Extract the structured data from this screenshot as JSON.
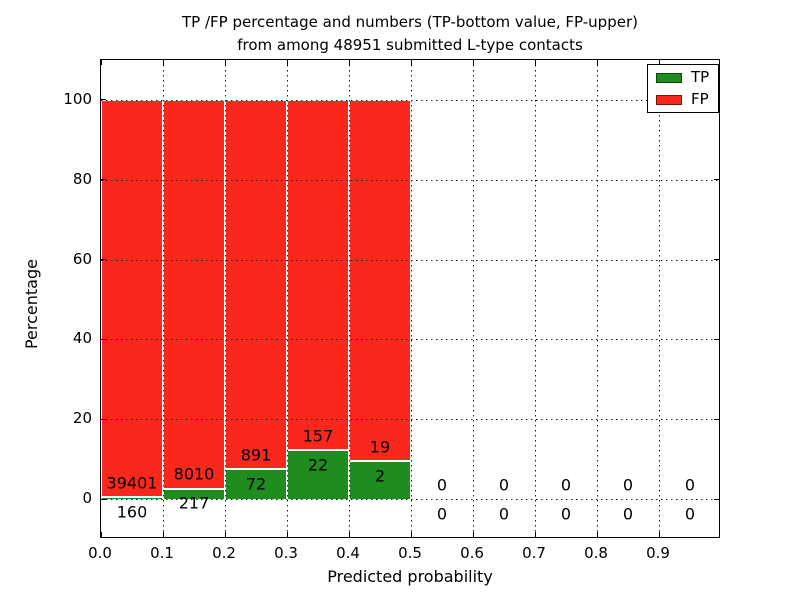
{
  "chart_data": {
    "type": "bar",
    "stacked": true,
    "title": "TP /FP percentage and numbers (TP-bottom value, FP-upper)",
    "subtitle": "from among 48951 submitted L-type contacts",
    "total_submitted": 48951,
    "xlabel": "Predicted probability",
    "ylabel": "Percentage",
    "xlim": [
      0.0,
      1.0
    ],
    "ylim": [
      -10,
      110
    ],
    "grid": "dotted",
    "x_tick_values": [
      0.0,
      0.1,
      0.2,
      0.3,
      0.4,
      0.5,
      0.6,
      0.7,
      0.8,
      0.9
    ],
    "x_tick_labels": [
      "0.0",
      "0.1",
      "0.2",
      "0.3",
      "0.4",
      "0.5",
      "0.6",
      "0.7",
      "0.8",
      "0.9"
    ],
    "y_tick_values": [
      0,
      20,
      40,
      60,
      80,
      100
    ],
    "y_tick_labels": [
      "0",
      "20",
      "40",
      "60",
      "80",
      "100"
    ],
    "legend": {
      "position": "upper-right",
      "entries": [
        {
          "label": "TP",
          "color": "#1e8c1e"
        },
        {
          "label": "FP",
          "color": "#f8281c"
        }
      ]
    },
    "bin_width": 0.1,
    "bins": [
      {
        "x_start": 0.0,
        "x_end": 0.1,
        "tp_count": 160,
        "fp_count": 39401,
        "tp_pct": 0.4,
        "fp_pct": 99.6
      },
      {
        "x_start": 0.1,
        "x_end": 0.2,
        "tp_count": 217,
        "fp_count": 8010,
        "tp_pct": 2.64,
        "fp_pct": 97.36
      },
      {
        "x_start": 0.2,
        "x_end": 0.3,
        "tp_count": 72,
        "fp_count": 891,
        "tp_pct": 7.48,
        "fp_pct": 92.52
      },
      {
        "x_start": 0.3,
        "x_end": 0.4,
        "tp_count": 22,
        "fp_count": 157,
        "tp_pct": 12.29,
        "fp_pct": 87.71
      },
      {
        "x_start": 0.4,
        "x_end": 0.5,
        "tp_count": 2,
        "fp_count": 19,
        "tp_pct": 9.52,
        "fp_pct": 90.48
      },
      {
        "x_start": 0.5,
        "x_end": 0.6,
        "tp_count": 0,
        "fp_count": 0,
        "tp_pct": 0,
        "fp_pct": 0
      },
      {
        "x_start": 0.6,
        "x_end": 0.7,
        "tp_count": 0,
        "fp_count": 0,
        "tp_pct": 0,
        "fp_pct": 0
      },
      {
        "x_start": 0.7,
        "x_end": 0.8,
        "tp_count": 0,
        "fp_count": 0,
        "tp_pct": 0,
        "fp_pct": 0
      },
      {
        "x_start": 0.8,
        "x_end": 0.9,
        "tp_count": 0,
        "fp_count": 0,
        "tp_pct": 0,
        "fp_pct": 0
      },
      {
        "x_start": 0.9,
        "x_end": 1.0,
        "tp_count": 0,
        "fp_count": 0,
        "tp_pct": 0,
        "fp_pct": 0
      }
    ]
  },
  "colors": {
    "tp_green": "#1e8c1e",
    "fp_red": "#f8281c",
    "bar_edge": "#ffffff",
    "grid": "#1a1a1a",
    "text": "#000000",
    "background": "#ffffff"
  }
}
